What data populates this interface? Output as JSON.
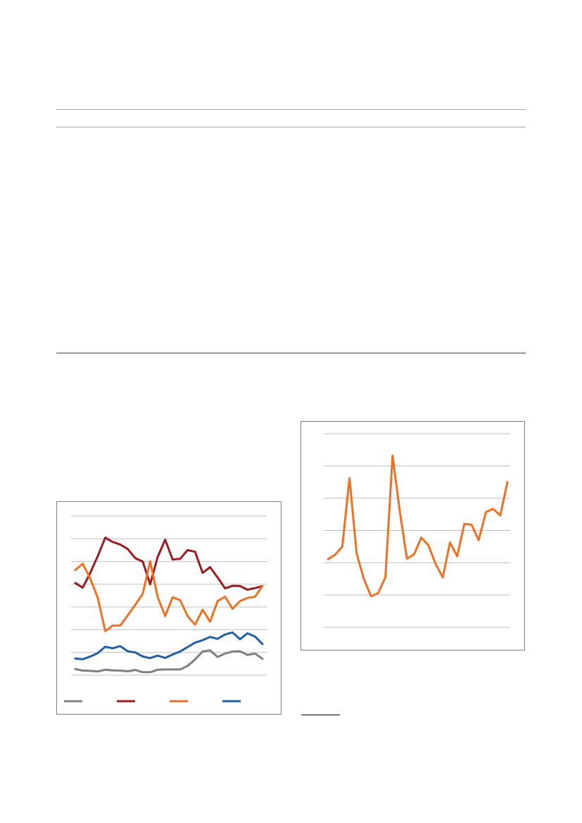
{
  "charts": {
    "left_chart": {
      "type": "line",
      "grid": true,
      "legend_placement": "bottom",
      "ylim": [
        0,
        7
      ],
      "series": [
        {
          "color": "#7f7f7f",
          "values": [
            0.27,
            0.2,
            0.19,
            0.16,
            0.24,
            0.21,
            0.2,
            0.17,
            0.23,
            0.13,
            0.13,
            0.24,
            0.25,
            0.25,
            0.25,
            0.41,
            0.69,
            1.04,
            1.09,
            0.8,
            0.95,
            1.04,
            1.05,
            0.89,
            0.95,
            0.72
          ]
        },
        {
          "color": "#9b1b1f",
          "values": [
            4.05,
            3.85,
            4.5,
            5.24,
            6.05,
            5.86,
            5.75,
            5.55,
            5.15,
            5.0,
            4.0,
            5.2,
            5.96,
            5.09,
            5.12,
            5.5,
            5.43,
            4.5,
            4.75,
            4.3,
            3.82,
            3.93,
            3.92,
            3.76,
            3.83,
            3.92
          ]
        },
        {
          "color": "#ed7125",
          "values": [
            4.63,
            4.9,
            4.25,
            3.4,
            1.94,
            2.18,
            2.18,
            2.63,
            3.09,
            3.58,
            5.01,
            3.44,
            2.6,
            3.43,
            3.3,
            2.6,
            2.22,
            2.88,
            2.35,
            3.26,
            3.45,
            2.92,
            3.26,
            3.4,
            3.45,
            3.92
          ]
        },
        {
          "color": "#1f5fa6",
          "values": [
            0.73,
            0.7,
            0.82,
            0.97,
            1.25,
            1.18,
            1.28,
            1.05,
            1.0,
            0.82,
            0.75,
            0.86,
            0.76,
            0.91,
            1.04,
            1.24,
            1.43,
            1.54,
            1.68,
            1.6,
            1.79,
            1.88,
            1.58,
            1.84,
            1.7,
            1.37
          ]
        }
      ]
    },
    "right_chart": {
      "type": "line",
      "grid": true,
      "ylim": [
        0,
        6
      ],
      "series": [
        {
          "color": "#ed7125",
          "values": [
            2.11,
            2.25,
            2.5,
            4.62,
            2.28,
            1.5,
            0.96,
            1.06,
            1.55,
            5.32,
            3.61,
            2.13,
            2.26,
            2.78,
            2.54,
            1.96,
            1.55,
            2.63,
            2.2,
            3.2,
            3.18,
            2.7,
            3.57,
            3.67,
            3.47,
            4.5
          ]
        }
      ]
    }
  }
}
